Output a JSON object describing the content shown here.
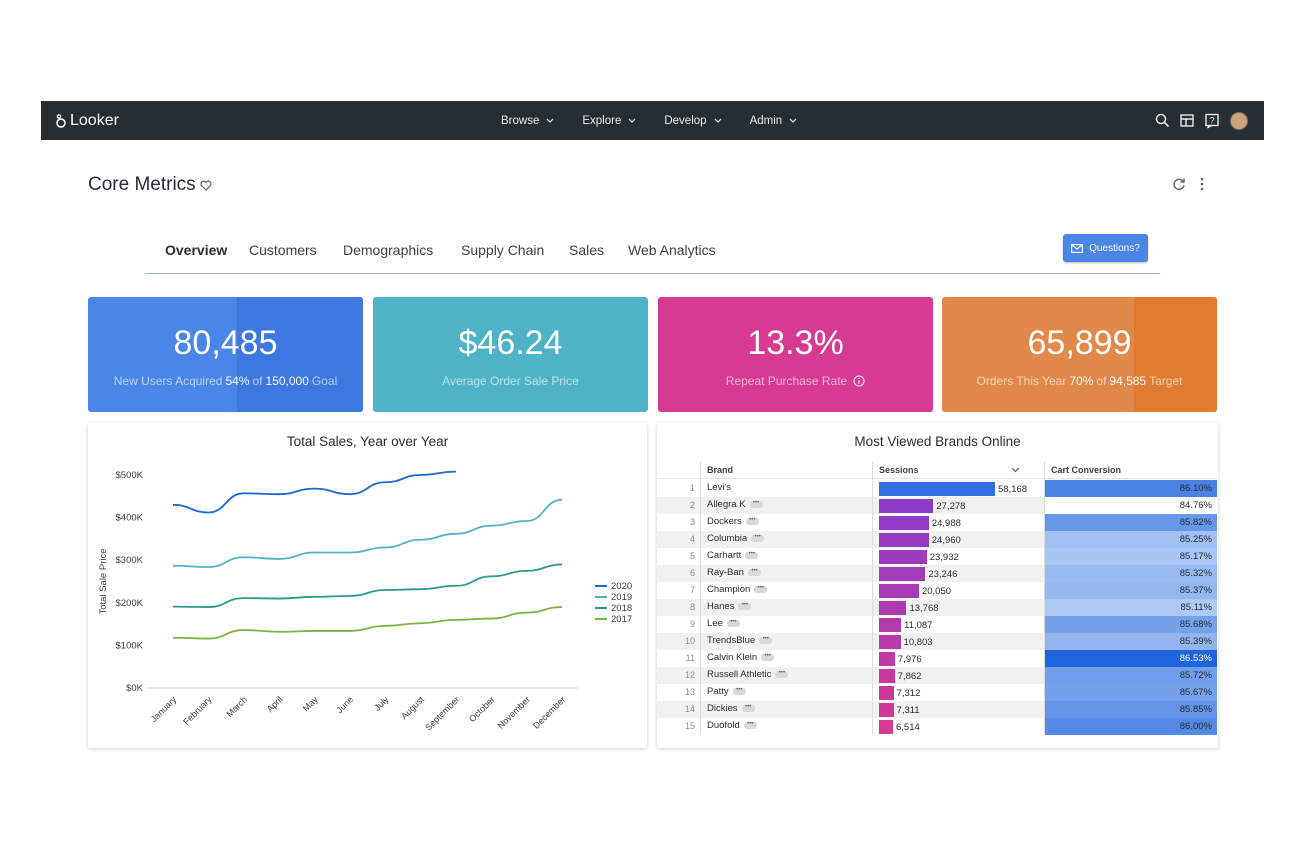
{
  "app": {
    "name": "Looker"
  },
  "nav": [
    {
      "label": "Browse"
    },
    {
      "label": "Explore"
    },
    {
      "label": "Develop"
    },
    {
      "label": "Admin"
    }
  ],
  "page": {
    "title": "Core Metrics"
  },
  "tabs": [
    {
      "label": "Overview",
      "active": true
    },
    {
      "label": "Customers"
    },
    {
      "label": "Demographics"
    },
    {
      "label": "Supply Chain"
    },
    {
      "label": "Sales"
    },
    {
      "label": "Web Analytics"
    }
  ],
  "questions_button": "Questions?",
  "kpis": [
    {
      "value": "80,485",
      "pre": "New Users Acquired",
      "strong1": "54%",
      "mid": "of",
      "strong2": "150,000",
      "post": "Goal",
      "color": "#4a86e8",
      "shade": "#3d78e0",
      "progress": 0.54
    },
    {
      "value": "$46.24",
      "label": "Average Order Sale Price",
      "color": "#4fb3c8"
    },
    {
      "value": "13.3%",
      "label": "Repeat Purchase Rate",
      "color": "#d63a92",
      "info_icon": "info-icon"
    },
    {
      "value": "65,899",
      "pre": "Orders This Year",
      "strong1": "70%",
      "mid": "of",
      "strong2": "94,585",
      "post": "Target",
      "color": "#e0894a",
      "shade": "#e07b32",
      "progress": 0.7
    }
  ],
  "sales_chart": {
    "title": "Total Sales, Year over Year",
    "ylabel": "Total Sale Price",
    "y_ticks": [
      "$500K",
      "$400K",
      "$300K",
      "$200K",
      "$100K",
      "$0K"
    ],
    "months": [
      "January",
      "February",
      "March",
      "April",
      "May",
      "June",
      "July",
      "August",
      "September",
      "October",
      "November",
      "December"
    ],
    "legend": [
      "2020",
      "2019",
      "2018",
      "2017"
    ],
    "colors": [
      "#1f67d2",
      "#4fb3c8",
      "#2a9a8c",
      "#7cb342"
    ]
  },
  "chart_data": {
    "type": "line",
    "title": "Total Sales, Year over Year",
    "xlabel": "",
    "ylabel": "Total Sale Price",
    "ylim": [
      0,
      500000
    ],
    "categories": [
      "January",
      "February",
      "March",
      "April",
      "May",
      "June",
      "July",
      "August",
      "September",
      "October",
      "November",
      "December"
    ],
    "series": [
      {
        "name": "2020",
        "values": [
          430000,
          412000,
          457000,
          455000,
          468000,
          455000,
          483000,
          500000,
          508000,
          null,
          null,
          null
        ]
      },
      {
        "name": "2019",
        "values": [
          287000,
          284000,
          307000,
          303000,
          318000,
          318000,
          330000,
          348000,
          362000,
          381000,
          392000,
          442000
        ]
      },
      {
        "name": "2018",
        "values": [
          191000,
          190000,
          211000,
          210000,
          214000,
          216000,
          230000,
          232000,
          240000,
          262000,
          275000,
          290000
        ]
      },
      {
        "name": "2017",
        "values": [
          118000,
          116000,
          136000,
          132000,
          134000,
          134000,
          146000,
          152000,
          160000,
          163000,
          177000,
          190000
        ]
      }
    ],
    "legend": "right"
  },
  "brands": {
    "title": "Most Viewed Brands Online",
    "headers": {
      "brand": "Brand",
      "sessions": "Sessions",
      "conv": "Cart Conversion"
    },
    "max_sessions": 58168,
    "rows": [
      {
        "i": "1",
        "brand": "Levi's",
        "sessions": "58,168",
        "n": 58168,
        "conv": "86.10%",
        "c": 86.1
      },
      {
        "i": "2",
        "brand": "Allegra K",
        "sessions": "27,278",
        "n": 27278,
        "conv": "84.76%",
        "c": 84.76
      },
      {
        "i": "3",
        "brand": "Dockers",
        "sessions": "24,988",
        "n": 24988,
        "conv": "85.82%",
        "c": 85.82
      },
      {
        "i": "4",
        "brand": "Columbia",
        "sessions": "24,960",
        "n": 24960,
        "conv": "85.25%",
        "c": 85.25
      },
      {
        "i": "5",
        "brand": "Carhartt",
        "sessions": "23,932",
        "n": 23932,
        "conv": "85.17%",
        "c": 85.17
      },
      {
        "i": "6",
        "brand": "Ray-Ban",
        "sessions": "23,246",
        "n": 23246,
        "conv": "85.32%",
        "c": 85.32
      },
      {
        "i": "7",
        "brand": "Champion",
        "sessions": "20,050",
        "n": 20050,
        "conv": "85.37%",
        "c": 85.37
      },
      {
        "i": "8",
        "brand": "Hanes",
        "sessions": "13,768",
        "n": 13768,
        "conv": "85.11%",
        "c": 85.11
      },
      {
        "i": "9",
        "brand": "Lee",
        "sessions": "11,087",
        "n": 11087,
        "conv": "85.68%",
        "c": 85.68
      },
      {
        "i": "10",
        "brand": "TrendsBlue",
        "sessions": "10,803",
        "n": 10803,
        "conv": "85.39%",
        "c": 85.39
      },
      {
        "i": "11",
        "brand": "Calvin Klein",
        "sessions": "7,976",
        "n": 7976,
        "conv": "86.53%",
        "c": 86.53
      },
      {
        "i": "12",
        "brand": "Russell Athletic",
        "sessions": "7,862",
        "n": 7862,
        "conv": "85.72%",
        "c": 85.72
      },
      {
        "i": "13",
        "brand": "Patty",
        "sessions": "7,312",
        "n": 7312,
        "conv": "85.67%",
        "c": 85.67
      },
      {
        "i": "14",
        "brand": "Dickies",
        "sessions": "7,311",
        "n": 7311,
        "conv": "85.85%",
        "c": 85.85
      },
      {
        "i": "15",
        "brand": "Duofold",
        "sessions": "6,514",
        "n": 6514,
        "conv": "86.00%",
        "c": 86.0
      }
    ]
  }
}
